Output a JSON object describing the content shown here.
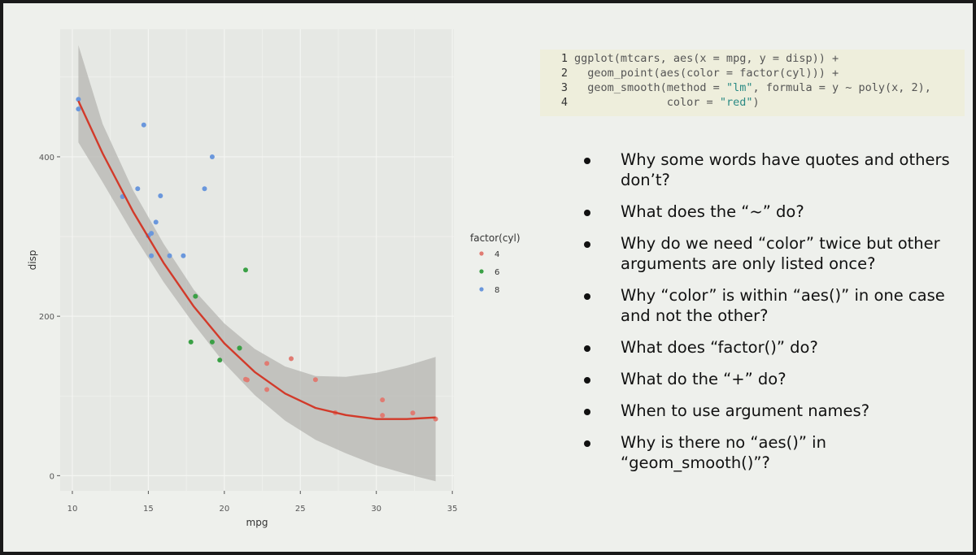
{
  "code": {
    "line_numbers": [
      "1",
      "2",
      "3",
      "4"
    ],
    "lines": [
      [
        {
          "t": "ggplot(mtcars, aes(x = mpg, y = disp)) +"
        }
      ],
      [
        {
          "t": "  geom_point(aes(color = factor(cyl))) +"
        }
      ],
      [
        {
          "t": "  geom_smooth(method = "
        },
        {
          "t": "\"lm\"",
          "s": true
        },
        {
          "t": ", formula = y ~ poly(x, 2),"
        }
      ],
      [
        {
          "t": "              color = "
        },
        {
          "t": "\"red\"",
          "s": true
        },
        {
          "t": ")"
        }
      ]
    ]
  },
  "questions": [
    "Why some words have quotes and others don’t?",
    "What does the “~” do?",
    "Why do we need “color” twice but other arguments are only listed once?",
    "Why “color” is within “aes()” in one case and not the other?",
    "What does “factor()” do?",
    "What do the “+” do?",
    "When to use argument names?",
    "Why is there no “aes()” in “geom_smooth()”?"
  ],
  "chart_data": {
    "type": "scatter",
    "xlabel": "mpg",
    "ylabel": "disp",
    "xlim": [
      9.2,
      35.1
    ],
    "ylim": [
      -19,
      560
    ],
    "x_ticks": [
      10,
      15,
      20,
      25,
      30,
      35
    ],
    "y_ticks": [
      0,
      200,
      400
    ],
    "grid": true,
    "legend": {
      "title": "factor(cyl)",
      "placement": "right",
      "labels": [
        "4",
        "6",
        "8"
      ]
    },
    "colors": {
      "4": "#e07b72",
      "6": "#3aa045",
      "8": "#6a97dc",
      "fit": "#d23a2a",
      "ribbon": "#b5b5b1",
      "panel": "#e6e8e4",
      "grid": "#f4f5f2"
    },
    "series": [
      {
        "name": "4",
        "points": [
          [
            22.8,
            108
          ],
          [
            24.4,
            146.7
          ],
          [
            22.8,
            140.8
          ],
          [
            32.4,
            78.7
          ],
          [
            30.4,
            75.7
          ],
          [
            33.9,
            71.1
          ],
          [
            21.5,
            120.1
          ],
          [
            27.3,
            79
          ],
          [
            26.0,
            120.3
          ],
          [
            30.4,
            95.1
          ],
          [
            21.4,
            121
          ]
        ]
      },
      {
        "name": "6",
        "points": [
          [
            21.0,
            160
          ],
          [
            21.0,
            160
          ],
          [
            21.4,
            258
          ],
          [
            18.1,
            225
          ],
          [
            19.2,
            167.6
          ],
          [
            17.8,
            167.6
          ],
          [
            19.7,
            145
          ]
        ]
      },
      {
        "name": "8",
        "points": [
          [
            18.7,
            360
          ],
          [
            14.3,
            360
          ],
          [
            16.4,
            275.8
          ],
          [
            17.3,
            275.8
          ],
          [
            15.2,
            275.8
          ],
          [
            10.4,
            472
          ],
          [
            10.4,
            460
          ],
          [
            14.7,
            440
          ],
          [
            15.5,
            318
          ],
          [
            15.2,
            304
          ],
          [
            13.3,
            350
          ],
          [
            19.2,
            400
          ],
          [
            15.8,
            351
          ],
          [
            15.0,
            301
          ]
        ]
      }
    ],
    "fit": {
      "method": "lm",
      "formula": "y ~ poly(x, 2)",
      "x": [
        10.4,
        12,
        14,
        16,
        18,
        20,
        22,
        24,
        26,
        28,
        30,
        32,
        33.9
      ],
      "y": [
        470,
        404,
        331,
        267,
        212,
        166,
        130,
        103,
        85,
        76,
        71,
        71,
        73
      ],
      "lower": [
        418,
        368,
        303,
        243,
        190,
        141,
        101,
        69,
        45,
        28,
        13,
        2,
        -7
      ],
      "upper": [
        540,
        441,
        358,
        291,
        233,
        191,
        159,
        137,
        125,
        124,
        129,
        138,
        149
      ]
    }
  }
}
